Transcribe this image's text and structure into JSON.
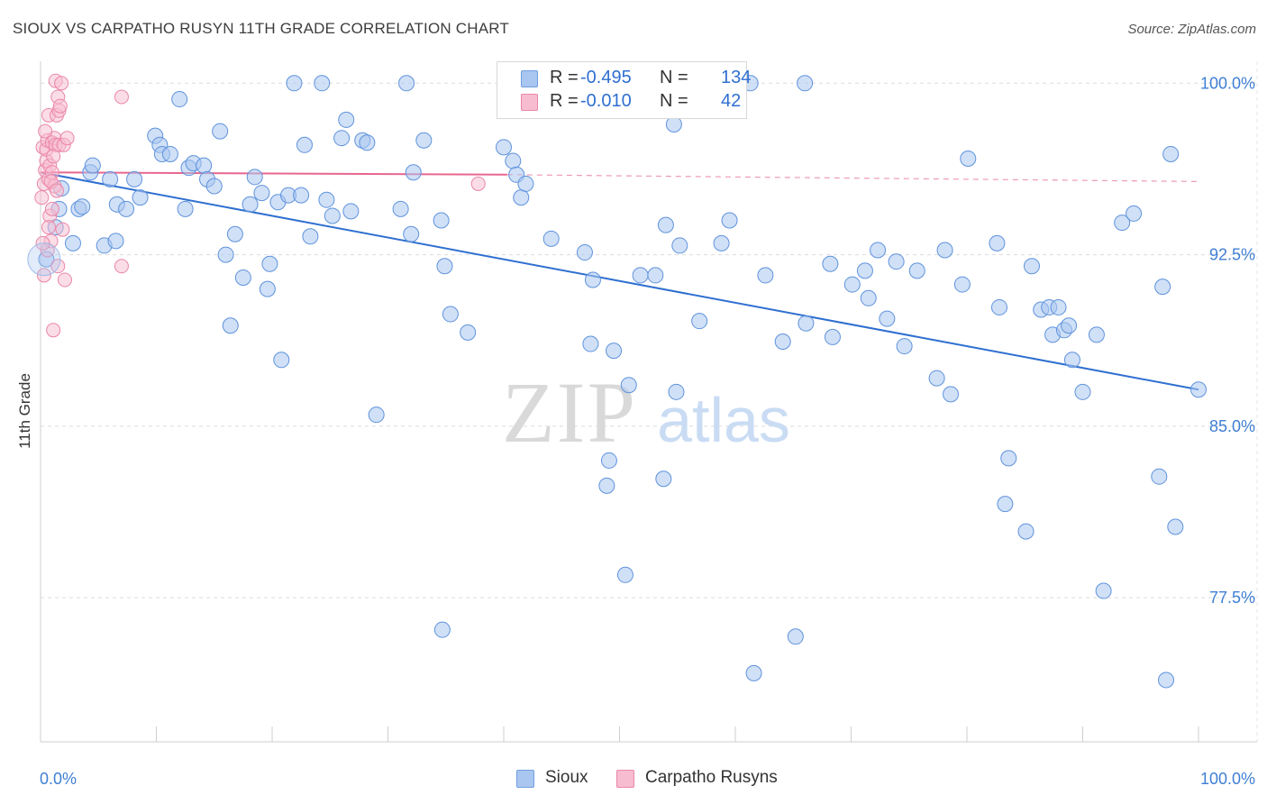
{
  "title": "SIOUX VS CARPATHO RUSYN 11TH GRADE CORRELATION CHART",
  "source": "Source: ZipAtlas.com",
  "watermark": {
    "zip": "ZIP",
    "atlas": "atlas"
  },
  "legend": {
    "rows": [
      {
        "r_label": "R =",
        "r_value": "-0.495",
        "n_label": "N =",
        "n_value": "134",
        "color": "#a9c6f0",
        "border": "#6f9fe0"
      },
      {
        "r_label": "R =",
        "r_value": "-0.010",
        "n_label": "N =",
        "n_value": "42",
        "color": "#f7bcd0",
        "border": "#ea86a8"
      }
    ]
  },
  "bottom_legend": [
    {
      "label": "Sioux",
      "color": "#a9c6f0",
      "border": "#6f9fe0"
    },
    {
      "label": "Carpatho Rusyns",
      "color": "#f7bcd0",
      "border": "#ea86a8"
    }
  ],
  "chart_data": {
    "type": "scatter",
    "xlabel": "",
    "ylabel": "11th Grade",
    "x_tick_labels": [
      "0.0%",
      "100.0%"
    ],
    "y_tick_labels": [
      "100.0%",
      "92.5%",
      "85.0%",
      "77.5%"
    ],
    "y_ticks": [
      100.0,
      92.5,
      85.0,
      77.5
    ],
    "xlim": [
      0,
      100
    ],
    "ylim": [
      71.2,
      100.8
    ],
    "grid": true,
    "colors": {
      "sioux": "#4a86d8",
      "carpatho": "#e8678f",
      "axis_text": "#3f7fd4"
    },
    "series": [
      {
        "name": "Sioux",
        "trend": {
          "x0": 0,
          "y0": 96.1,
          "x1": 100,
          "y1": 86.6
        },
        "points": [
          [
            0.5,
            92.3
          ],
          [
            1.3,
            93.7
          ],
          [
            1.6,
            94.5
          ],
          [
            1.8,
            95.4
          ],
          [
            2.8,
            93.0
          ],
          [
            3.3,
            94.5
          ],
          [
            3.6,
            94.6
          ],
          [
            4.3,
            96.1
          ],
          [
            4.5,
            96.4
          ],
          [
            5.5,
            92.9
          ],
          [
            6.0,
            95.8
          ],
          [
            6.5,
            93.1
          ],
          [
            6.6,
            94.7
          ],
          [
            7.4,
            94.5
          ],
          [
            8.1,
            95.8
          ],
          [
            8.6,
            95.0
          ],
          [
            9.9,
            97.7
          ],
          [
            10.3,
            97.3
          ],
          [
            10.5,
            96.9
          ],
          [
            11.2,
            96.9
          ],
          [
            12.0,
            99.3
          ],
          [
            12.5,
            94.5
          ],
          [
            12.8,
            96.3
          ],
          [
            13.2,
            96.5
          ],
          [
            14.1,
            96.4
          ],
          [
            14.4,
            95.8
          ],
          [
            15.0,
            95.5
          ],
          [
            15.5,
            97.9
          ],
          [
            16.0,
            92.5
          ],
          [
            16.4,
            89.4
          ],
          [
            16.8,
            93.4
          ],
          [
            17.5,
            91.5
          ],
          [
            18.1,
            94.7
          ],
          [
            18.5,
            95.9
          ],
          [
            19.1,
            95.2
          ],
          [
            19.6,
            91.0
          ],
          [
            19.8,
            92.1
          ],
          [
            20.5,
            94.8
          ],
          [
            20.8,
            87.9
          ],
          [
            21.4,
            95.1
          ],
          [
            21.9,
            100.0
          ],
          [
            22.5,
            95.1
          ],
          [
            22.8,
            97.3
          ],
          [
            23.3,
            93.3
          ],
          [
            24.3,
            100.0
          ],
          [
            24.7,
            94.9
          ],
          [
            25.2,
            94.2
          ],
          [
            26.0,
            97.6
          ],
          [
            26.4,
            98.4
          ],
          [
            26.8,
            94.4
          ],
          [
            27.8,
            97.5
          ],
          [
            28.2,
            97.4
          ],
          [
            29.0,
            85.5
          ],
          [
            31.1,
            94.5
          ],
          [
            31.6,
            100.0
          ],
          [
            32.0,
            93.4
          ],
          [
            32.2,
            96.1
          ],
          [
            33.1,
            97.5
          ],
          [
            34.6,
            94.0
          ],
          [
            34.9,
            92.0
          ],
          [
            34.7,
            76.1
          ],
          [
            35.4,
            89.9
          ],
          [
            36.9,
            89.1
          ],
          [
            40.0,
            97.2
          ],
          [
            40.8,
            96.6
          ],
          [
            41.1,
            96.0
          ],
          [
            41.5,
            95.0
          ],
          [
            41.9,
            95.6
          ],
          [
            44.1,
            93.2
          ],
          [
            46.6,
            100.0
          ],
          [
            47.0,
            92.6
          ],
          [
            47.5,
            88.6
          ],
          [
            47.7,
            91.4
          ],
          [
            48.9,
            82.4
          ],
          [
            49.1,
            83.5
          ],
          [
            49.5,
            88.3
          ],
          [
            50.5,
            78.5
          ],
          [
            50.8,
            86.8
          ],
          [
            51.8,
            91.6
          ],
          [
            53.1,
            91.6
          ],
          [
            53.8,
            82.7
          ],
          [
            54.0,
            93.8
          ],
          [
            54.7,
            98.2
          ],
          [
            54.9,
            86.5
          ],
          [
            55.2,
            92.9
          ],
          [
            56.9,
            89.6
          ],
          [
            58.8,
            93.0
          ],
          [
            59.5,
            94.0
          ],
          [
            61.3,
            100.0
          ],
          [
            61.6,
            74.2
          ],
          [
            62.6,
            91.6
          ],
          [
            64.1,
            88.7
          ],
          [
            65.2,
            75.8
          ],
          [
            66.0,
            100.0
          ],
          [
            66.1,
            89.5
          ],
          [
            68.2,
            92.1
          ],
          [
            68.4,
            88.9
          ],
          [
            70.1,
            91.2
          ],
          [
            71.2,
            91.8
          ],
          [
            71.5,
            90.6
          ],
          [
            72.3,
            92.7
          ],
          [
            73.1,
            89.7
          ],
          [
            73.9,
            92.2
          ],
          [
            74.6,
            88.5
          ],
          [
            75.7,
            91.8
          ],
          [
            77.4,
            87.1
          ],
          [
            78.1,
            92.7
          ],
          [
            78.6,
            86.4
          ],
          [
            79.6,
            91.2
          ],
          [
            80.1,
            96.7
          ],
          [
            82.6,
            93.0
          ],
          [
            82.8,
            90.2
          ],
          [
            83.6,
            83.6
          ],
          [
            83.3,
            81.6
          ],
          [
            85.1,
            80.4
          ],
          [
            85.6,
            92.0
          ],
          [
            86.4,
            90.1
          ],
          [
            87.1,
            90.2
          ],
          [
            87.4,
            89.0
          ],
          [
            87.9,
            90.2
          ],
          [
            88.4,
            89.2
          ],
          [
            88.8,
            89.4
          ],
          [
            89.1,
            87.9
          ],
          [
            90.0,
            86.5
          ],
          [
            91.2,
            89.0
          ],
          [
            91.8,
            77.8
          ],
          [
            93.4,
            93.9
          ],
          [
            94.4,
            94.3
          ],
          [
            96.6,
            82.8
          ],
          [
            96.9,
            91.1
          ],
          [
            97.2,
            73.9
          ],
          [
            97.6,
            96.9
          ],
          [
            98.0,
            80.6
          ],
          [
            100.0,
            86.6
          ]
        ]
      },
      {
        "name": "Carpatho Rusyns",
        "trend": {
          "x0": 0,
          "y0": 96.1,
          "x1": 40.3,
          "y1": 96.0,
          "dash_to_x": 100,
          "dash_to_y": 95.7
        },
        "points": [
          [
            0.1,
            95.0
          ],
          [
            0.2,
            97.2
          ],
          [
            0.3,
            95.6
          ],
          [
            0.4,
            96.2
          ],
          [
            0.5,
            96.6
          ],
          [
            0.5,
            97.1
          ],
          [
            0.6,
            97.5
          ],
          [
            0.7,
            95.8
          ],
          [
            0.7,
            98.6
          ],
          [
            0.8,
            96.4
          ],
          [
            0.8,
            94.2
          ],
          [
            0.9,
            93.1
          ],
          [
            1.0,
            97.4
          ],
          [
            1.0,
            96.1
          ],
          [
            1.1,
            89.2
          ],
          [
            1.2,
            95.5
          ],
          [
            1.2,
            97.6
          ],
          [
            1.3,
            97.3
          ],
          [
            1.3,
            100.1
          ],
          [
            1.4,
            98.6
          ],
          [
            1.5,
            92.0
          ],
          [
            1.5,
            99.4
          ],
          [
            1.6,
            98.8
          ],
          [
            1.6,
            97.3
          ],
          [
            1.7,
            99.0
          ],
          [
            1.8,
            100.0
          ],
          [
            1.9,
            93.6
          ],
          [
            2.0,
            97.3
          ],
          [
            2.1,
            91.4
          ],
          [
            2.3,
            97.6
          ],
          [
            0.3,
            91.6
          ],
          [
            0.6,
            92.7
          ],
          [
            0.9,
            95.7
          ],
          [
            1.1,
            96.8
          ],
          [
            1.4,
            95.3
          ],
          [
            0.4,
            97.9
          ],
          [
            0.7,
            93.7
          ],
          [
            1.0,
            94.5
          ],
          [
            7.0,
            92.0
          ],
          [
            7.0,
            99.4
          ],
          [
            37.8,
            95.6
          ],
          [
            0.2,
            93.0
          ]
        ]
      }
    ]
  }
}
